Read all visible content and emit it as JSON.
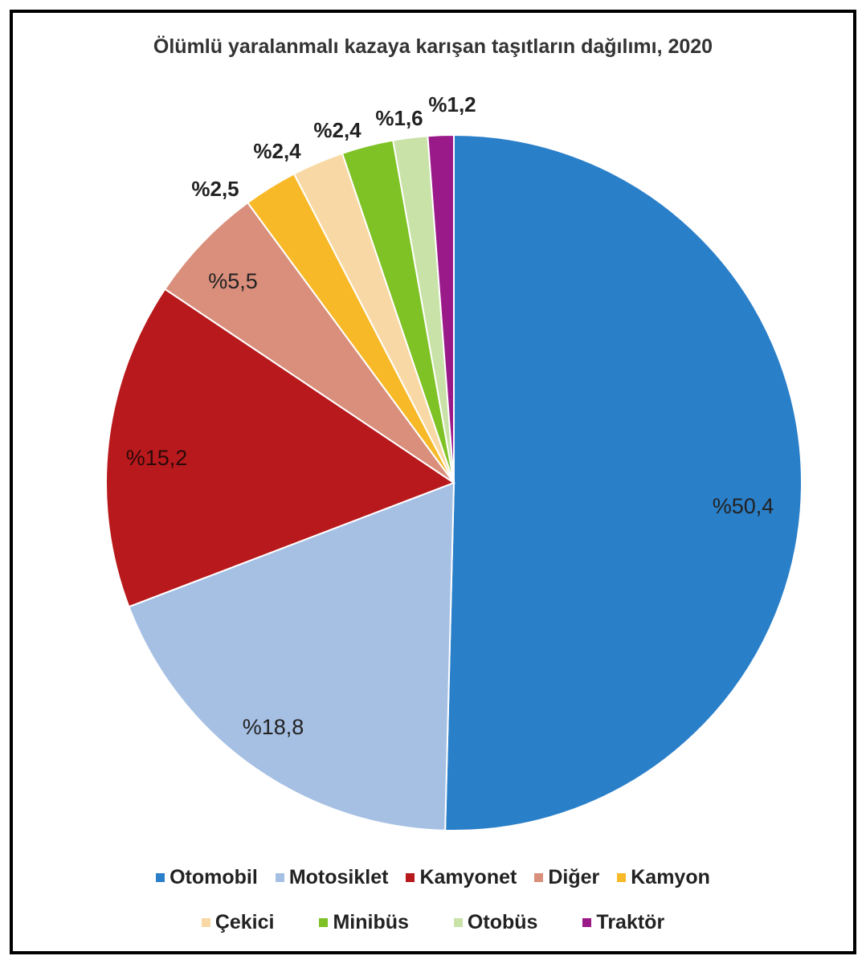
{
  "chart_data": {
    "type": "pie",
    "title": "Ölümlü yaralanmalı kazaya karışan taşıtların dağılımı, 2020",
    "categories": [
      "Otomobil",
      "Motosiklet",
      "Kamyonet",
      "Diğer",
      "Kamyon",
      "Çekici",
      "Minibüs",
      "Otobüs",
      "Traktör"
    ],
    "values": [
      50.4,
      18.8,
      15.2,
      5.5,
      2.5,
      2.4,
      2.4,
      1.6,
      1.2
    ],
    "data_labels": [
      "%50,4",
      "%18,8",
      "%15,2",
      "%5,5",
      "%2,5",
      "%2,4",
      "%2,4",
      "%1,6",
      "%1,2"
    ],
    "colors": [
      "#2a7fc9",
      "#a6c0e4",
      "#b8191c",
      "#d98f7b",
      "#f8b928",
      "#f8d9a6",
      "#7fc225",
      "#c9e2a8",
      "#9b1a8a"
    ],
    "start": "12 o'clock, clockwise",
    "legend_position": "bottom"
  }
}
